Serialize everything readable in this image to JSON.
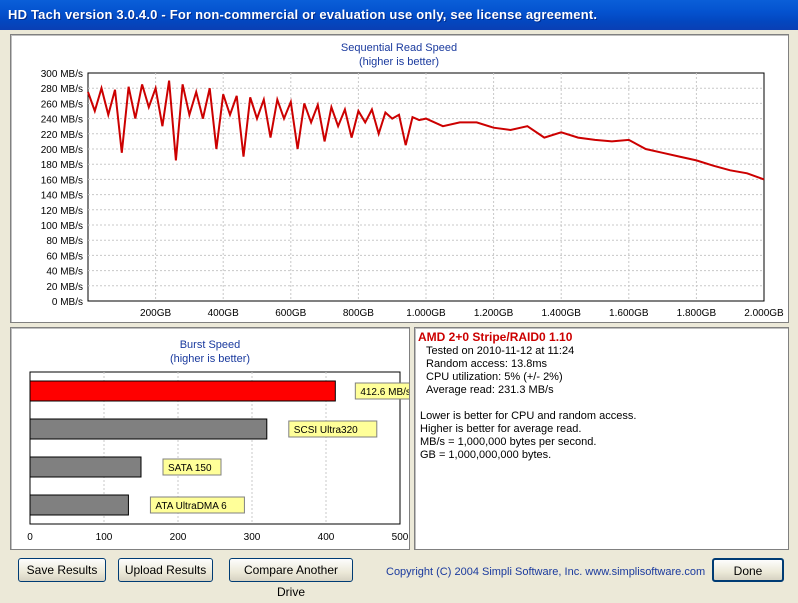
{
  "window": {
    "title": "HD Tach version 3.0.4.0  - For non-commercial or evaluation use only, see license agreement."
  },
  "colors": {
    "series": "#cc0000",
    "grid": "#c8c8c8",
    "label_blue": "#1a3a9e",
    "burst_primary": "#ff0000",
    "burst_ref": "#808080",
    "label_bg": "#ffff99"
  },
  "chart_data": [
    {
      "type": "line",
      "title": "Sequential Read Speed",
      "subtitle": "(higher is better)",
      "x_tick_labels": [
        "200GB",
        "400GB",
        "600GB",
        "800GB",
        "1.000GB",
        "1.200GB",
        "1.400GB",
        "1.600GB",
        "1.800GB",
        "2.000GB"
      ],
      "y_tick_labels": [
        "300 MB/s",
        "280 MB/s",
        "260 MB/s",
        "240 MB/s",
        "220 MB/s",
        "200 MB/s",
        "180 MB/s",
        "160 MB/s",
        "140 MB/s",
        "120 MB/s",
        "100 MB/s",
        "80 MB/s",
        "60 MB/s",
        "40 MB/s",
        "20 MB/s",
        "0 MB/s"
      ],
      "ylim": [
        0,
        300
      ],
      "xlim": [
        0,
        2000
      ],
      "grid": true,
      "series": [
        {
          "x": [
            0,
            20,
            40,
            60,
            80,
            100,
            120,
            140,
            160,
            180,
            200,
            220,
            240,
            260,
            280,
            300,
            320,
            340,
            360,
            380,
            400,
            420,
            440,
            460,
            480,
            500,
            520,
            540,
            560,
            580,
            600,
            620,
            640,
            660,
            680,
            700,
            720,
            740,
            760,
            780,
            800,
            820,
            840,
            860,
            880,
            900,
            920,
            940,
            960,
            980,
            1000,
            1050,
            1100,
            1150,
            1200,
            1250,
            1300,
            1350,
            1400,
            1450,
            1500,
            1550,
            1600,
            1650,
            1700,
            1750,
            1800,
            1850,
            1900,
            1950,
            2000
          ],
          "y": [
            275,
            250,
            280,
            245,
            278,
            195,
            282,
            240,
            285,
            255,
            280,
            230,
            290,
            185,
            285,
            245,
            275,
            240,
            280,
            200,
            272,
            245,
            270,
            190,
            268,
            240,
            265,
            215,
            265,
            240,
            262,
            200,
            260,
            235,
            258,
            210,
            255,
            230,
            252,
            215,
            250,
            235,
            252,
            220,
            248,
            240,
            245,
            205,
            242,
            238,
            240,
            230,
            235,
            235,
            228,
            225,
            230,
            215,
            222,
            215,
            212,
            210,
            212,
            200,
            195,
            190,
            185,
            178,
            172,
            168,
            160
          ]
        }
      ]
    },
    {
      "type": "bar",
      "title": "Burst Speed",
      "subtitle": "(higher is better)",
      "orientation": "horizontal",
      "xlim": [
        0,
        500
      ],
      "x_tick_labels": [
        "0",
        "100",
        "200",
        "300",
        "400",
        "500"
      ],
      "categories": [
        "412.6 MB/s",
        "SCSI Ultra320",
        "SATA 150",
        "ATA UltraDMA 6"
      ],
      "values": [
        412.6,
        320,
        150,
        133
      ],
      "grid": true
    }
  ],
  "info": {
    "title": "AMD 2+0 Stripe/RAID0 1.10",
    "lines": [
      "Tested on 2010-11-12 at 11:24",
      "Random access: 13.8ms",
      "CPU utilization: 5% (+/- 2%)",
      "Average read: 231.3 MB/s"
    ],
    "notes": [
      "Lower is better for CPU and random access.",
      "Higher is better for average read.",
      "MB/s = 1,000,000 bytes per second.",
      "GB = 1,000,000,000 bytes."
    ]
  },
  "buttons": {
    "save": "Save Results",
    "upload": "Upload Results",
    "compare": "Compare Another Drive",
    "done": "Done"
  },
  "copyright": "Copyright (C) 2004 Simpli Software, Inc. www.simplisoftware.com"
}
